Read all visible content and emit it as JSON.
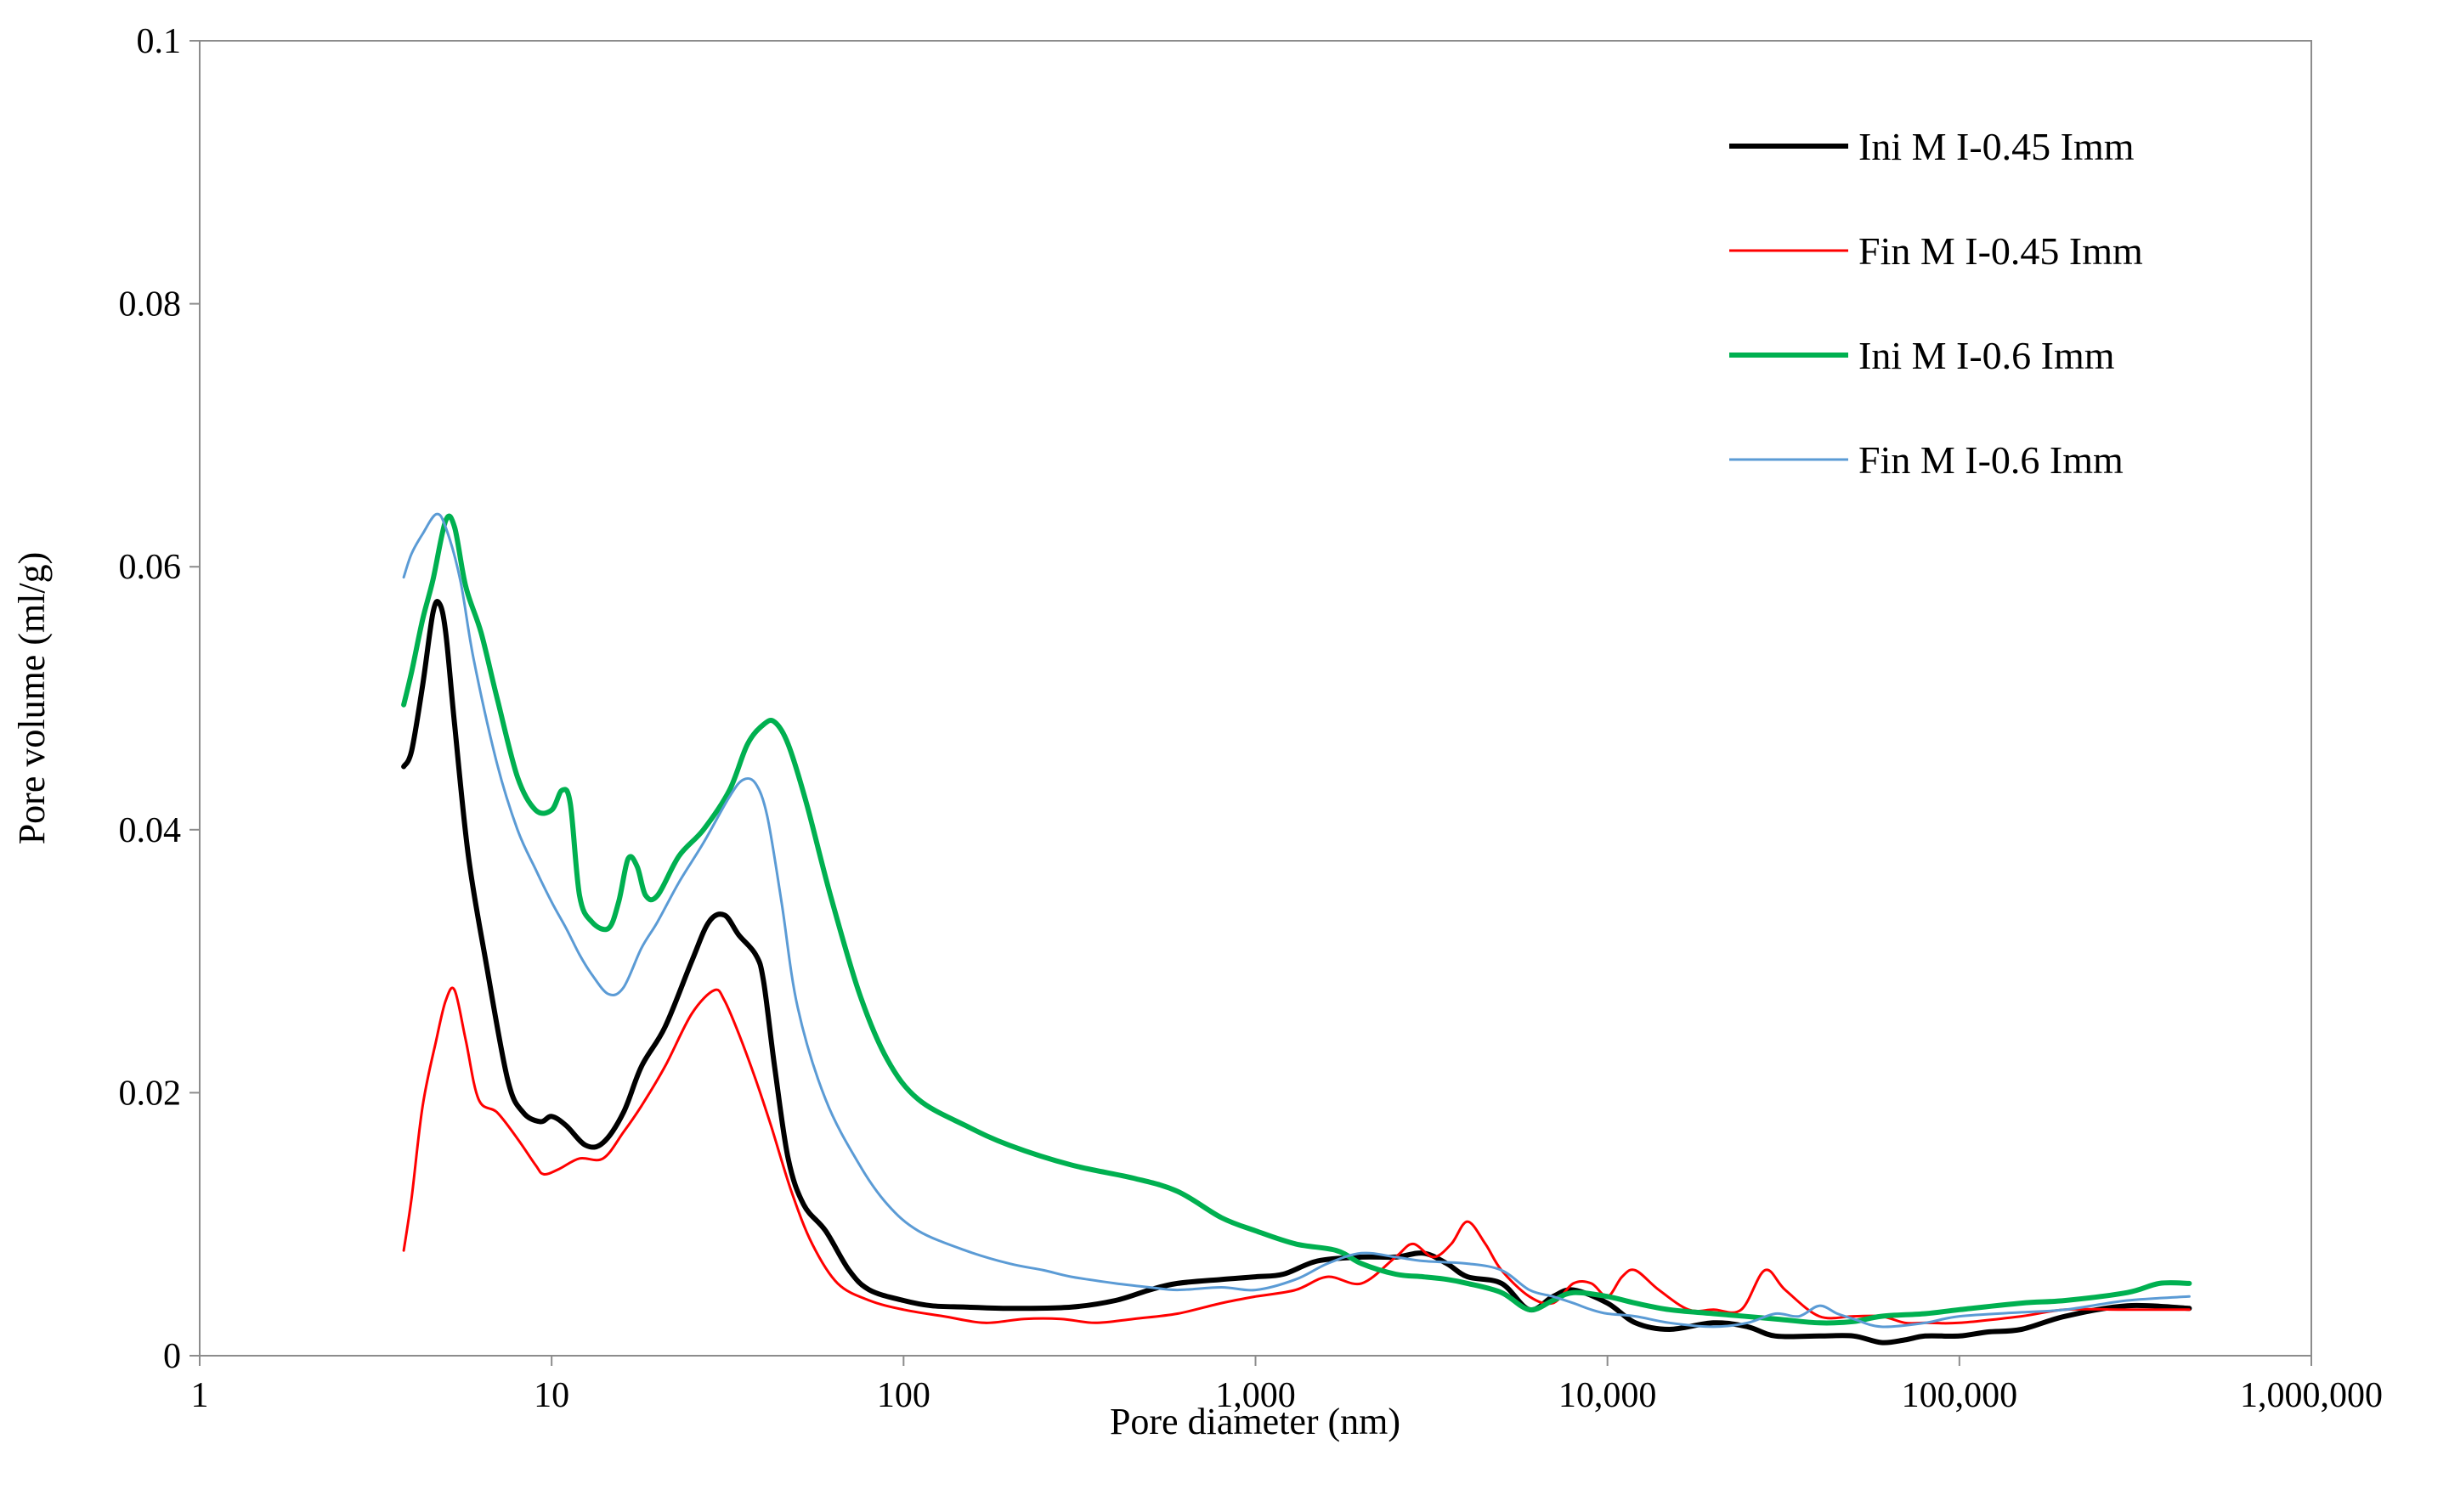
{
  "chart_data": {
    "type": "line",
    "title": "",
    "xlabel": "Pore diameter (nm)",
    "ylabel": "Pore volume (ml/g)",
    "xscale": "log",
    "xlim": [
      1,
      1000000
    ],
    "ylim": [
      0,
      0.1
    ],
    "x_ticks": [
      1,
      10,
      100,
      1000,
      10000,
      100000,
      1000000
    ],
    "x_tick_labels": [
      "1",
      "10",
      "100",
      "1,000",
      "10,000",
      "100,000",
      "1,000,000"
    ],
    "y_ticks": [
      0,
      0.02,
      0.04,
      0.06,
      0.08,
      0.1
    ],
    "y_tick_labels": [
      "0",
      "0.02",
      "0.04",
      "0.06",
      "0.08",
      "0.1"
    ],
    "grid": false,
    "legend_position": "top-right",
    "series": [
      {
        "name": "Ini M I-0.45  Imm",
        "color": "#000000",
        "width": 6,
        "x": [
          3.8,
          4.0,
          4.3,
          4.6,
          4.8,
          5.0,
          5.3,
          5.8,
          6.5,
          7.5,
          8.3,
          9.3,
          10.0,
          11.0,
          12.5,
          14.0,
          16.0,
          18.0,
          21.0,
          25.0,
          28.0,
          31.0,
          34.0,
          38.0,
          40.0,
          43.0,
          47.0,
          52.0,
          60.0,
          70.0,
          80.0,
          100,
          120,
          150,
          200,
          300,
          400,
          500,
          600,
          800,
          1000,
          1200,
          1500,
          2000,
          2500,
          3000,
          3500,
          4000,
          5000,
          6000,
          7000,
          8000,
          10000,
          12000,
          15000,
          20000,
          25000,
          30000,
          40000,
          50000,
          60000,
          70000,
          80000,
          100000,
          120000,
          150000,
          200000,
          300000,
          450000
        ],
        "y": [
          0.0448,
          0.046,
          0.051,
          0.0565,
          0.0572,
          0.055,
          0.048,
          0.038,
          0.03,
          0.021,
          0.0185,
          0.0178,
          0.0182,
          0.0175,
          0.016,
          0.0162,
          0.0185,
          0.022,
          0.025,
          0.03,
          0.033,
          0.0335,
          0.032,
          0.0305,
          0.0285,
          0.022,
          0.015,
          0.0115,
          0.0095,
          0.0065,
          0.005,
          0.0042,
          0.0038,
          0.0037,
          0.0036,
          0.0037,
          0.0042,
          0.005,
          0.0055,
          0.0058,
          0.006,
          0.0062,
          0.0072,
          0.0075,
          0.0075,
          0.0078,
          0.007,
          0.006,
          0.0055,
          0.0035,
          0.0045,
          0.005,
          0.004,
          0.0025,
          0.002,
          0.0025,
          0.0022,
          0.0015,
          0.0015,
          0.0015,
          0.001,
          0.0012,
          0.0015,
          0.0015,
          0.0018,
          0.002,
          0.003,
          0.0038,
          0.0036
        ]
      },
      {
        "name": "Fin M I-0.45  Imm",
        "color": "#ff0000",
        "width": 3,
        "x": [
          3.8,
          4.0,
          4.3,
          4.7,
          5.0,
          5.3,
          5.7,
          6.2,
          7.0,
          8.0,
          9.0,
          9.5,
          10.5,
          12.0,
          14.0,
          16.0,
          18.0,
          21.0,
          25.0,
          29.0,
          31.0,
          34.0,
          38.0,
          42.0,
          48.0,
          55.0,
          65.0,
          80.0,
          100,
          130,
          170,
          220,
          280,
          350,
          450,
          600,
          800,
          1000,
          1300,
          1600,
          2000,
          2500,
          2800,
          3200,
          3600,
          4000,
          4500,
          5000,
          6000,
          7000,
          8000,
          9000,
          10000,
          11000,
          12000,
          14000,
          17000,
          20000,
          24000,
          28000,
          32000,
          40000,
          50000,
          60000,
          70000,
          80000,
          100000,
          150000,
          200000,
          300000,
          450000
        ],
        "y": [
          0.008,
          0.012,
          0.019,
          0.024,
          0.027,
          0.0278,
          0.024,
          0.0195,
          0.0185,
          0.0165,
          0.0145,
          0.0138,
          0.0142,
          0.015,
          0.015,
          0.017,
          0.019,
          0.022,
          0.026,
          0.0278,
          0.027,
          0.0245,
          0.021,
          0.0175,
          0.0125,
          0.0085,
          0.0055,
          0.0042,
          0.0035,
          0.003,
          0.0025,
          0.0028,
          0.0028,
          0.0025,
          0.0028,
          0.0032,
          0.004,
          0.0045,
          0.005,
          0.006,
          0.0055,
          0.0075,
          0.0085,
          0.0075,
          0.0085,
          0.0102,
          0.0085,
          0.0065,
          0.0045,
          0.004,
          0.0055,
          0.0055,
          0.0045,
          0.006,
          0.0065,
          0.005,
          0.0035,
          0.0035,
          0.0035,
          0.0065,
          0.005,
          0.003,
          0.003,
          0.003,
          0.0025,
          0.0025,
          0.0025,
          0.003,
          0.0035,
          0.0035,
          0.0035
        ]
      },
      {
        "name": "Ini M I-0.6  Imm",
        "color": "#00b050",
        "width": 6,
        "x": [
          3.8,
          4.0,
          4.3,
          4.6,
          5.0,
          5.3,
          5.7,
          6.3,
          7.0,
          8.0,
          9.0,
          10.0,
          10.7,
          11.3,
          12.0,
          13.0,
          14.5,
          15.5,
          16.5,
          17.5,
          18.5,
          20.0,
          23.0,
          27.0,
          32.0,
          36.0,
          40.0,
          43.0,
          47.0,
          53.0,
          62.0,
          75.0,
          90.0,
          110,
          150,
          200,
          300,
          450,
          600,
          800,
          1000,
          1300,
          1700,
          2000,
          2500,
          3000,
          3500,
          4000,
          5000,
          6000,
          7000,
          8000,
          10000,
          12000,
          15000,
          20000,
          30000,
          40000,
          50000,
          60000,
          80000,
          100000,
          150000,
          200000,
          300000,
          370000,
          450000
        ],
        "y": [
          0.0495,
          0.052,
          0.056,
          0.059,
          0.0635,
          0.063,
          0.0585,
          0.055,
          0.05,
          0.044,
          0.0415,
          0.0415,
          0.043,
          0.042,
          0.035,
          0.033,
          0.0325,
          0.0345,
          0.0378,
          0.0372,
          0.035,
          0.035,
          0.038,
          0.04,
          0.043,
          0.0465,
          0.048,
          0.0482,
          0.0465,
          0.042,
          0.035,
          0.0275,
          0.0225,
          0.0195,
          0.0175,
          0.016,
          0.0145,
          0.0135,
          0.0125,
          0.0105,
          0.0095,
          0.0085,
          0.008,
          0.007,
          0.0062,
          0.006,
          0.0058,
          0.0055,
          0.0048,
          0.0035,
          0.0042,
          0.0048,
          0.0045,
          0.004,
          0.0035,
          0.0032,
          0.0028,
          0.0025,
          0.0026,
          0.003,
          0.0032,
          0.0035,
          0.004,
          0.0042,
          0.0048,
          0.0055,
          0.0055
        ]
      },
      {
        "name": "Fin M I-0.6  Imm",
        "color": "#5b9bd5",
        "width": 3,
        "x": [
          3.8,
          4.0,
          4.3,
          4.7,
          5.0,
          5.5,
          6.0,
          7.0,
          8.0,
          9.0,
          10.0,
          11.0,
          12.0,
          13.0,
          14.5,
          16.0,
          18.0,
          20.0,
          23.0,
          27.0,
          32.0,
          35.0,
          38.0,
          41.0,
          45.0,
          50.0,
          60.0,
          75.0,
          90.0,
          110,
          150,
          200,
          250,
          300,
          400,
          500,
          600,
          800,
          1000,
          1300,
          1600,
          2000,
          2500,
          3000,
          4000,
          5000,
          6000,
          7000,
          8000,
          9000,
          10000,
          12000,
          15000,
          20000,
          25000,
          30000,
          35000,
          40000,
          45000,
          50000,
          60000,
          80000,
          100000,
          150000,
          200000,
          300000,
          450000
        ],
        "y": [
          0.0592,
          0.061,
          0.0625,
          0.064,
          0.063,
          0.059,
          0.053,
          0.045,
          0.04,
          0.037,
          0.0345,
          0.0325,
          0.0305,
          0.029,
          0.0275,
          0.028,
          0.031,
          0.033,
          0.036,
          0.039,
          0.0425,
          0.0438,
          0.0435,
          0.041,
          0.0345,
          0.0265,
          0.0195,
          0.0145,
          0.0115,
          0.0095,
          0.008,
          0.007,
          0.0065,
          0.006,
          0.0055,
          0.0052,
          0.005,
          0.0052,
          0.005,
          0.0058,
          0.007,
          0.0078,
          0.0075,
          0.0072,
          0.007,
          0.0065,
          0.005,
          0.0045,
          0.004,
          0.0035,
          0.0032,
          0.003,
          0.0025,
          0.0022,
          0.0025,
          0.0032,
          0.003,
          0.0038,
          0.0032,
          0.0028,
          0.0022,
          0.0025,
          0.003,
          0.0033,
          0.0035,
          0.0042,
          0.0045
        ]
      }
    ]
  }
}
